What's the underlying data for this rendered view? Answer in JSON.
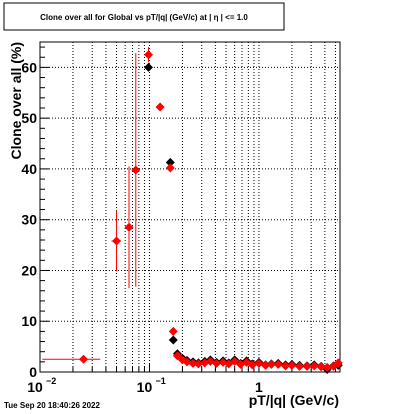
{
  "chart_data": {
    "type": "scatter",
    "title": "Clone  over all for Global vs pT/|q| (GeV/c) at |  η  | <= 1.0",
    "xlabel": "pT/|q| (GeV/c)",
    "ylabel": "Clone  over all (%)",
    "xscale": "log",
    "xlim": [
      0.01,
      5.5
    ],
    "ylim": [
      0,
      65
    ],
    "grid": true,
    "x_ticks": [
      {
        "value": 0.01,
        "label": "10"
      },
      {
        "value": 0.1,
        "label": "10"
      },
      {
        "value": 1,
        "label": "1"
      }
    ],
    "x_tick_exponents": [
      "−2",
      "−1",
      ""
    ],
    "y_ticks": [
      {
        "value": 0,
        "label": "0"
      },
      {
        "value": 10,
        "label": "10"
      },
      {
        "value": 20,
        "label": "20"
      },
      {
        "value": 30,
        "label": "30"
      },
      {
        "value": 40,
        "label": "40"
      },
      {
        "value": 50,
        "label": "50"
      },
      {
        "value": 60,
        "label": "60"
      }
    ],
    "series": [
      {
        "color": "#000000",
        "marker": "diamond",
        "points": [
          {
            "x": 0.098,
            "y": 60.0
          },
          {
            "x": 0.155,
            "y": 41.3
          },
          {
            "x": 0.165,
            "y": 6.3
          },
          {
            "x": 0.18,
            "y": 3.6
          },
          {
            "x": 0.2,
            "y": 2.7
          },
          {
            "x": 0.22,
            "y": 2.3
          },
          {
            "x": 0.25,
            "y": 2.0
          },
          {
            "x": 0.28,
            "y": 1.8
          },
          {
            "x": 0.32,
            "y": 2.1
          },
          {
            "x": 0.36,
            "y": 2.4
          },
          {
            "x": 0.41,
            "y": 1.9
          },
          {
            "x": 0.47,
            "y": 2.2
          },
          {
            "x": 0.53,
            "y": 1.8
          },
          {
            "x": 0.6,
            "y": 2.4
          },
          {
            "x": 0.68,
            "y": 1.7
          },
          {
            "x": 0.77,
            "y": 2.2
          },
          {
            "x": 0.87,
            "y": 1.6
          },
          {
            "x": 1.0,
            "y": 1.9
          },
          {
            "x": 1.15,
            "y": 1.4
          },
          {
            "x": 1.3,
            "y": 1.6
          },
          {
            "x": 1.5,
            "y": 1.7
          },
          {
            "x": 1.75,
            "y": 1.4
          },
          {
            "x": 2.0,
            "y": 1.5
          },
          {
            "x": 2.35,
            "y": 1.3
          },
          {
            "x": 2.75,
            "y": 1.2
          },
          {
            "x": 3.2,
            "y": 1.4
          },
          {
            "x": 3.7,
            "y": 1.1
          },
          {
            "x": 4.2,
            "y": 0.5
          },
          {
            "x": 4.8,
            "y": 1.2
          },
          {
            "x": 5.3,
            "y": 1.3
          }
        ]
      },
      {
        "color": "#ff0000",
        "marker": "diamond",
        "points": [
          {
            "x": 0.025,
            "y": 2.5,
            "xerr": [
              0.0145,
              0.0105
            ],
            "yerr": 0
          },
          {
            "x": 0.05,
            "y": 25.8,
            "xerr": [
              0.005,
              0.005
            ],
            "yerr": 6.0
          },
          {
            "x": 0.065,
            "y": 28.5,
            "xerr": [
              0.005,
              0.005
            ],
            "yerr": 12.0
          },
          {
            "x": 0.075,
            "y": 39.8,
            "xerr": [
              0.005,
              0.005
            ],
            "yerr": 23.0
          },
          {
            "x": 0.098,
            "y": 62.5,
            "xerr": [
              0.008,
              0.008
            ],
            "yerr": 1.5
          },
          {
            "x": 0.125,
            "y": 52.2,
            "xerr": [
              0.005,
              0.005
            ],
            "yerr": 0.4
          },
          {
            "x": 0.155,
            "y": 40.2,
            "xerr": [
              0.005,
              0.005
            ],
            "yerr": 0.5
          },
          {
            "x": 0.165,
            "y": 8.0,
            "xerr": [
              0.003,
              0.003
            ],
            "yerr": 0.3
          },
          {
            "x": 0.18,
            "y": 3.2
          },
          {
            "x": 0.2,
            "y": 2.4
          },
          {
            "x": 0.22,
            "y": 2.0
          },
          {
            "x": 0.25,
            "y": 1.7
          },
          {
            "x": 0.28,
            "y": 1.6
          },
          {
            "x": 0.32,
            "y": 1.8
          },
          {
            "x": 0.36,
            "y": 2.1
          },
          {
            "x": 0.41,
            "y": 1.7
          },
          {
            "x": 0.47,
            "y": 1.9
          },
          {
            "x": 0.53,
            "y": 1.6
          },
          {
            "x": 0.6,
            "y": 2.1
          },
          {
            "x": 0.68,
            "y": 1.5
          },
          {
            "x": 0.77,
            "y": 1.9
          },
          {
            "x": 0.87,
            "y": 1.4
          },
          {
            "x": 1.0,
            "y": 1.7
          },
          {
            "x": 1.15,
            "y": 1.3
          },
          {
            "x": 1.3,
            "y": 1.5
          },
          {
            "x": 1.5,
            "y": 1.5
          },
          {
            "x": 1.75,
            "y": 1.2
          },
          {
            "x": 2.0,
            "y": 1.3
          },
          {
            "x": 2.35,
            "y": 1.1
          },
          {
            "x": 2.75,
            "y": 1.1
          },
          {
            "x": 3.2,
            "y": 1.2
          },
          {
            "x": 3.7,
            "y": 1.0
          },
          {
            "x": 4.2,
            "y": 0.9
          },
          {
            "x": 4.8,
            "y": 1.1
          },
          {
            "x": 5.3,
            "y": 1.8
          }
        ]
      }
    ]
  },
  "datestamp": "Tue Sep 20 18:40:26 2022"
}
